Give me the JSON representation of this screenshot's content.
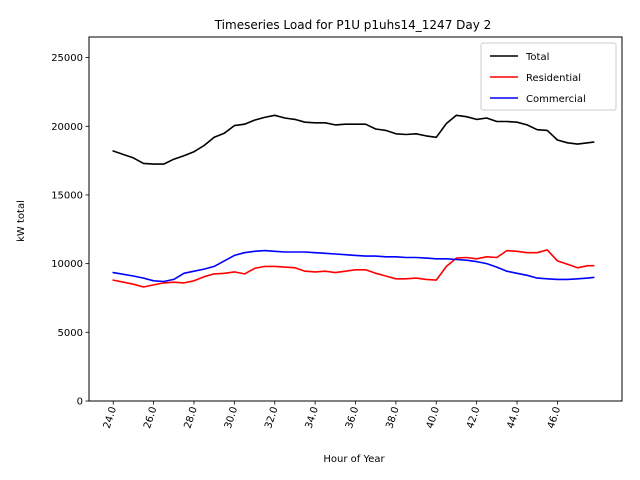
{
  "chart_data": {
    "type": "line",
    "title": "Timeseries Load for P1U p1uhs14_1247  Day 2",
    "xlabel": "Hour of Year",
    "ylabel": "kW total",
    "xlim": [
      22.8,
      49.2
    ],
    "ylim": [
      0,
      26500
    ],
    "x_ticks": [
      24,
      26,
      28,
      30,
      32,
      34,
      36,
      38,
      40,
      42,
      44,
      46
    ],
    "x_tick_labels": [
      "24.0",
      "26.0",
      "28.0",
      "30.0",
      "32.0",
      "34.0",
      "36.0",
      "38.0",
      "40.0",
      "42.0",
      "44.0",
      "46.0"
    ],
    "y_ticks": [
      0,
      5000,
      10000,
      15000,
      20000,
      25000
    ],
    "y_tick_labels": [
      "0",
      "5000",
      "10000",
      "15000",
      "20000",
      "25000"
    ],
    "legend_position": "top-right",
    "x": [
      24.0,
      25.0,
      25.5,
      26.0,
      26.5,
      27.0,
      27.5,
      28.0,
      28.5,
      29.0,
      29.5,
      30.0,
      30.5,
      31.0,
      31.5,
      32.0,
      32.5,
      33.0,
      33.5,
      34.0,
      34.5,
      35.0,
      35.5,
      36.0,
      36.5,
      37.0,
      37.5,
      38.0,
      38.5,
      39.0,
      39.5,
      40.0,
      40.5,
      41.0,
      41.5,
      42.0,
      42.5,
      43.0,
      43.5,
      44.0,
      44.5,
      45.0,
      45.5,
      46.0,
      46.5,
      47.0,
      47.5,
      47.8
    ],
    "series": [
      {
        "name": "Total",
        "color": "#000000",
        "values": [
          18200,
          17700,
          17300,
          17250,
          17250,
          17600,
          17850,
          18150,
          18600,
          19200,
          19500,
          20050,
          20150,
          20450,
          20650,
          20800,
          20600,
          20500,
          20300,
          20250,
          20250,
          20100,
          20150,
          20150,
          20150,
          19800,
          19700,
          19450,
          19400,
          19450,
          19300,
          19200,
          20200,
          20800,
          20700,
          20500,
          20600,
          20350,
          20350,
          20300,
          20100,
          19750,
          19700,
          19000,
          18800,
          18700,
          18800,
          18850
        ]
      },
      {
        "name": "Residential",
        "color": "#ff0000",
        "values": [
          8800,
          8500,
          8300,
          8450,
          8600,
          8650,
          8600,
          8750,
          9050,
          9250,
          9300,
          9400,
          9250,
          9650,
          9800,
          9800,
          9750,
          9700,
          9450,
          9400,
          9450,
          9350,
          9450,
          9550,
          9550,
          9300,
          9100,
          8900,
          8900,
          8950,
          8850,
          8800,
          9800,
          10400,
          10450,
          10350,
          10500,
          10450,
          10950,
          10900,
          10800,
          10800,
          11000,
          10200,
          9950,
          9700,
          9850,
          9850
        ]
      },
      {
        "name": "Commercial",
        "color": "#0000ff",
        "values": [
          9350,
          9100,
          8950,
          8750,
          8700,
          8850,
          9300,
          9450,
          9600,
          9800,
          10200,
          10600,
          10800,
          10900,
          10950,
          10900,
          10850,
          10850,
          10850,
          10800,
          10750,
          10700,
          10650,
          10600,
          10550,
          10550,
          10500,
          10500,
          10450,
          10450,
          10400,
          10350,
          10350,
          10300,
          10250,
          10150,
          10000,
          9750,
          9450,
          9300,
          9150,
          8950,
          8900,
          8850,
          8850,
          8900,
          8950,
          9000
        ]
      }
    ]
  }
}
